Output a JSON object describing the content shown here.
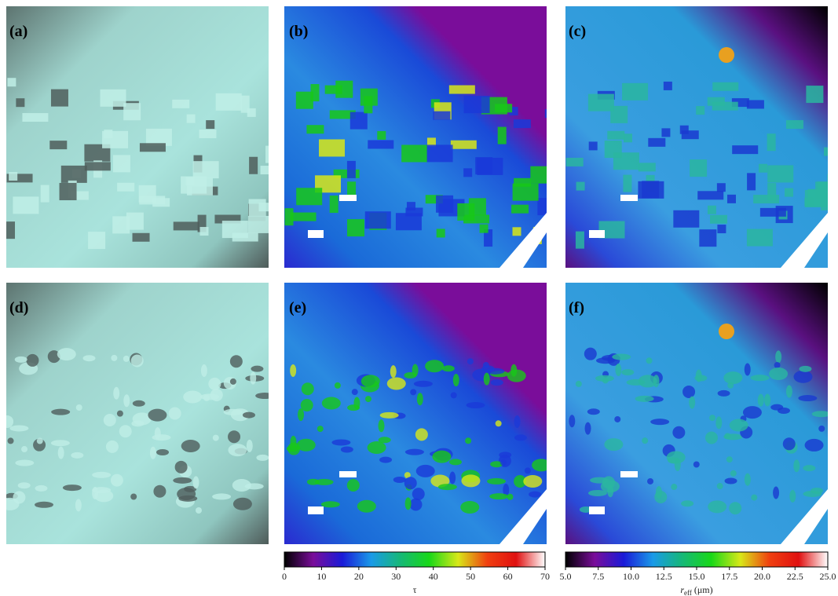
{
  "panels": [
    "(a)",
    "(b)",
    "(c)",
    "(d)",
    "(e)",
    "(f)"
  ],
  "colorbars": [
    {
      "label": {
        "symbol": "τ"
      },
      "lim": [
        0,
        70
      ],
      "ticks": [
        0,
        10,
        20,
        30,
        40,
        50,
        60,
        70
      ],
      "colors": [
        "#000000",
        "#7a0d9a",
        "#1a1ad8",
        "#1a9ae8",
        "#16b878",
        "#18d818",
        "#d8e818",
        "#f04010",
        "#e01010",
        "#ffffff"
      ]
    },
    {
      "label": {
        "symbol": "r",
        "subscript": "eff",
        "unit": "(μm)"
      },
      "lim": [
        5,
        25
      ],
      "ticks": [
        {
          "value": 5,
          "label": "5.0"
        },
        7.5,
        {
          "value": 10,
          "label": "10.0"
        },
        12.5,
        {
          "value": 15,
          "label": "15.0"
        },
        17.5,
        {
          "value": 20,
          "label": "20.0"
        },
        22.5,
        {
          "value": 25,
          "label": "25.0"
        }
      ],
      "colors": [
        "#000000",
        "#7a0d9a",
        "#1a1ad8",
        "#1a9ae8",
        "#16b878",
        "#18d818",
        "#d8e818",
        "#f04010",
        "#e01010",
        "#ffffff"
      ]
    }
  ]
}
